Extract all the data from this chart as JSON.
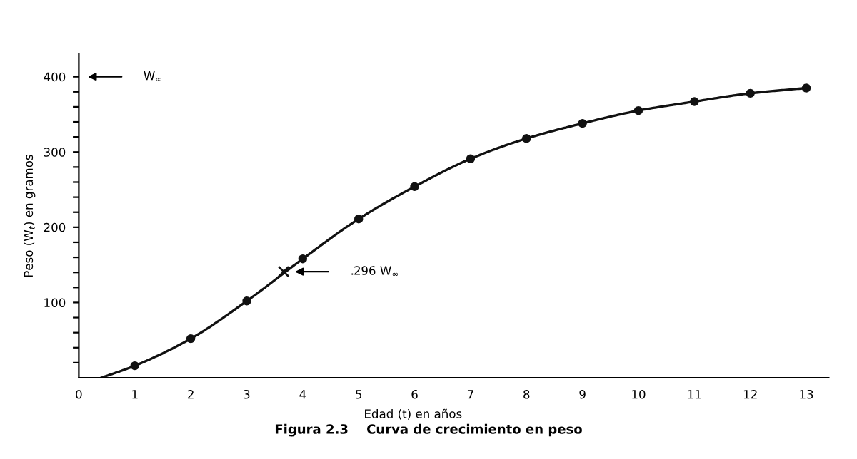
{
  "chart_data": {
    "type": "line",
    "title": "Figura 2.3    Curva de crecimiento en peso",
    "xlabel": "Edad (t) en años",
    "ylabel": "Peso (W$_{t}$) en gramos",
    "series": [
      {
        "color": "#111111",
        "marker": "none",
        "x": [
          0.4,
          1,
          2,
          3,
          4,
          5,
          6,
          7,
          8,
          9,
          10,
          11,
          12,
          13
        ],
        "values": [
          0,
          16,
          52,
          102,
          158,
          211,
          254,
          291,
          318,
          338,
          355,
          367,
          378,
          385
        ]
      },
      {
        "type": "scatter",
        "color": "#111111",
        "marker": "circle",
        "x": [
          1,
          2,
          3,
          4,
          5,
          6,
          7,
          8,
          9,
          10,
          11,
          12,
          13
        ],
        "values": [
          16,
          52,
          102,
          158,
          211,
          254,
          291,
          318,
          338,
          355,
          367,
          378,
          385
        ]
      },
      {
        "type": "scatter",
        "color": "#111111",
        "marker": "cross",
        "x": [
          3.66
        ],
        "values": [
          141
        ]
      }
    ],
    "annotations": [
      "W$_{∞}$",
      ".296 W$_{∞}$"
    ],
    "xlim": [
      0,
      13.4
    ],
    "ylim": [
      0,
      430
    ],
    "xticks": [
      0,
      1,
      2,
      3,
      4,
      5,
      6,
      7,
      8,
      9,
      10,
      11,
      12,
      13
    ],
    "yticks": [
      {
        "value": 20,
        "label": null
      },
      {
        "value": 40,
        "label": null
      },
      {
        "value": 60,
        "label": null
      },
      {
        "value": 80,
        "label": null
      },
      100,
      {
        "value": 120,
        "label": null
      },
      {
        "value": 140,
        "label": null
      },
      {
        "value": 160,
        "label": null
      },
      {
        "value": 180,
        "label": null
      },
      200,
      {
        "value": 220,
        "label": null
      },
      {
        "value": 240,
        "label": null
      },
      {
        "value": 260,
        "label": null
      },
      {
        "value": 280,
        "label": null
      },
      300,
      {
        "value": 320,
        "label": null
      },
      {
        "value": 340,
        "label": null
      },
      {
        "value": 360,
        "label": null
      },
      {
        "value": 380,
        "label": null
      },
      400
    ],
    "grid": false,
    "legend": false
  }
}
